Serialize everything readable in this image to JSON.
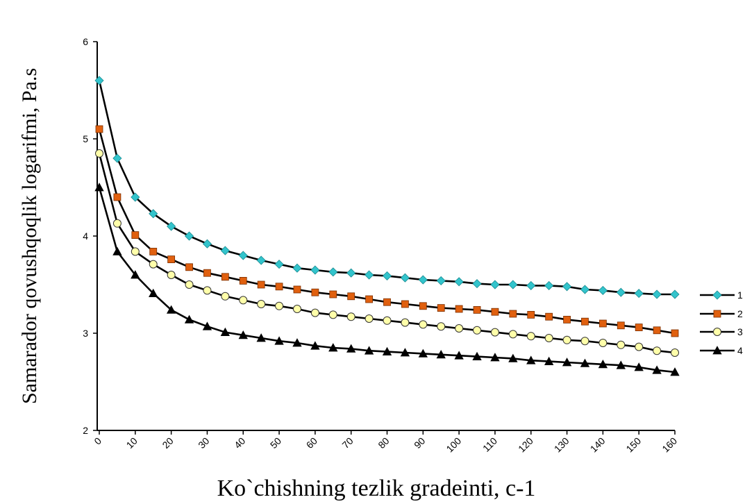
{
  "chart_data": {
    "type": "line",
    "ylabel": "Samarador qovushqoqlik logarifmi, Pa.s",
    "xlabel": "Ko`chishning tezlik gradeinti, c-1",
    "ylim": [
      2,
      6
    ],
    "yticks": [
      "2",
      "3",
      "4",
      "5",
      "6"
    ],
    "xticks": [
      "0",
      "10",
      "20",
      "30",
      "40",
      "50",
      "60",
      "70",
      "80",
      "90",
      "100",
      "110",
      "120",
      "130",
      "140",
      "150",
      "160"
    ],
    "x": [
      0,
      5,
      10,
      15,
      20,
      25,
      30,
      35,
      40,
      45,
      50,
      55,
      60,
      65,
      70,
      75,
      80,
      85,
      90,
      95,
      100,
      105,
      110,
      115,
      120,
      125,
      130,
      135,
      140,
      145,
      150,
      155,
      160
    ],
    "grid": false,
    "legend_position": "right",
    "series": [
      {
        "name": "1",
        "color": "#33c4cc",
        "marker": "diamond",
        "values": [
          5.6,
          4.8,
          4.4,
          4.23,
          4.1,
          4.0,
          3.92,
          3.85,
          3.8,
          3.75,
          3.71,
          3.67,
          3.65,
          3.63,
          3.62,
          3.6,
          3.59,
          3.57,
          3.55,
          3.54,
          3.53,
          3.51,
          3.5,
          3.5,
          3.49,
          3.49,
          3.48,
          3.45,
          3.44,
          3.42,
          3.41,
          3.4,
          3.4
        ]
      },
      {
        "name": "2",
        "color": "#e0600f",
        "marker": "square",
        "values": [
          5.1,
          4.4,
          4.01,
          3.84,
          3.76,
          3.68,
          3.62,
          3.58,
          3.54,
          3.5,
          3.48,
          3.45,
          3.42,
          3.4,
          3.38,
          3.35,
          3.32,
          3.3,
          3.28,
          3.26,
          3.25,
          3.24,
          3.22,
          3.2,
          3.19,
          3.17,
          3.14,
          3.12,
          3.1,
          3.08,
          3.06,
          3.03,
          3.0
        ]
      },
      {
        "name": "3",
        "color": "#ffffaa",
        "marker": "circle",
        "values": [
          4.85,
          4.13,
          3.84,
          3.71,
          3.6,
          3.5,
          3.44,
          3.38,
          3.34,
          3.3,
          3.28,
          3.25,
          3.21,
          3.19,
          3.17,
          3.15,
          3.13,
          3.11,
          3.09,
          3.07,
          3.05,
          3.03,
          3.01,
          2.99,
          2.97,
          2.95,
          2.93,
          2.92,
          2.9,
          2.88,
          2.86,
          2.82,
          2.8
        ]
      },
      {
        "name": "4",
        "color": "#000000",
        "marker": "triangle",
        "values": [
          4.5,
          3.84,
          3.6,
          3.41,
          3.24,
          3.14,
          3.07,
          3.01,
          2.98,
          2.95,
          2.92,
          2.9,
          2.87,
          2.85,
          2.84,
          2.82,
          2.81,
          2.8,
          2.79,
          2.78,
          2.77,
          2.76,
          2.75,
          2.74,
          2.72,
          2.71,
          2.7,
          2.69,
          2.68,
          2.67,
          2.65,
          2.62,
          2.6
        ]
      }
    ]
  }
}
